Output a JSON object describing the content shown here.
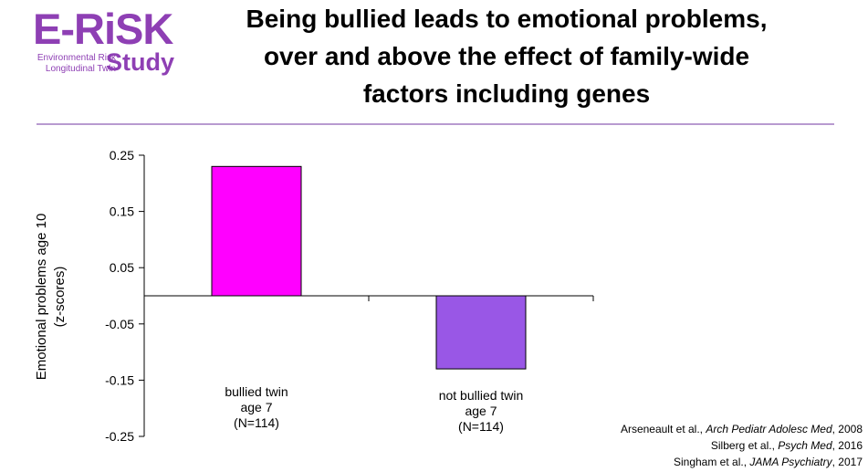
{
  "logo": {
    "main": "E-RiSK",
    "sub_line1": "Environmental Risk",
    "sub_line2": "Longitudinal Twin",
    "study": "Study"
  },
  "title": {
    "line1": "Being bullied leads to emotional problems,",
    "line2": "over and above the effect of family-wide",
    "line3": "factors including genes"
  },
  "chart_data": {
    "type": "bar",
    "ylabel_line1": "Emotional problems age 10",
    "ylabel_line2": "(z-scores)",
    "ylim": [
      -0.25,
      0.25
    ],
    "yticks": [
      0.25,
      0.15,
      0.05,
      -0.05,
      -0.15,
      -0.25
    ],
    "yticklabels": [
      "0.25",
      "0.15",
      "0.05",
      "-0.05",
      "-0.15",
      "-0.25"
    ],
    "grid": false,
    "categories": [
      {
        "line1": "bullied twin",
        "line2": "age 7",
        "line3": "(N=114)",
        "value": 0.23,
        "color": "#ff00ff"
      },
      {
        "line1": "not bullied twin",
        "line2": "age 7",
        "line3": "(N=114)",
        "value": -0.13,
        "color": "#9957e6"
      }
    ]
  },
  "references": [
    {
      "authors": "Arseneault et al., ",
      "journal": "Arch Pediatr Adolesc Med",
      "year": ", 2008"
    },
    {
      "authors": "Silberg et al., ",
      "journal": "Psych Med",
      "year": ", 2016"
    },
    {
      "authors": "Singham et al., ",
      "journal": "JAMA Psychiatry",
      "year": ", 2017"
    }
  ],
  "colors": {
    "brand": "#8e3fb4",
    "divider": "#b89ad0"
  }
}
